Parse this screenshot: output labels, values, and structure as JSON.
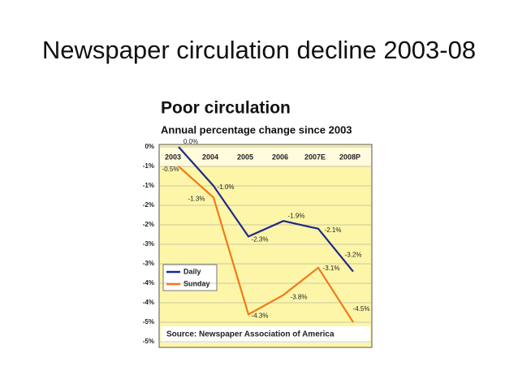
{
  "slide_title": "Newspaper circulation decline 2003-08",
  "chart_data": {
    "type": "line",
    "title": "Poor circulation",
    "subtitle": "Annual percentage change since 2003",
    "source": "Source: Newspaper Association of America",
    "categories": [
      "2003",
      "2004",
      "2005",
      "2006",
      "2007E",
      "2008P"
    ],
    "series": [
      {
        "name": "Daily",
        "color": "#1f2a8a",
        "values": [
          0.0,
          -1.0,
          -2.3,
          -1.9,
          -2.1,
          -3.2
        ],
        "value_labels": [
          "0.0%",
          "-1.0%",
          "-2.3%",
          "-1.9%",
          "-2.1%",
          "-3.2%"
        ]
      },
      {
        "name": "Sunday",
        "color": "#f07a1a",
        "values": [
          -0.5,
          -1.3,
          -4.3,
          -3.8,
          -3.1,
          -4.5
        ],
        "value_labels": [
          "-0.5%",
          "-1.3%",
          "-4.3%",
          "-3.8%",
          "-3.1%",
          "-4.5%"
        ]
      }
    ],
    "ylim": [
      0,
      -5
    ],
    "yticks": [
      {
        "value": 0,
        "label": "0%"
      },
      {
        "value": -0.5,
        "label": "-1%"
      },
      {
        "value": -1,
        "label": "-1%"
      },
      {
        "value": -1.5,
        "label": "-2%"
      },
      {
        "value": -2,
        "label": "-2%"
      },
      {
        "value": -2.5,
        "label": "-3%"
      },
      {
        "value": -3,
        "label": "-3%"
      },
      {
        "value": -3.5,
        "label": "-4%"
      },
      {
        "value": -4,
        "label": "-4%"
      },
      {
        "value": -4.5,
        "label": "-5%"
      },
      {
        "value": -5,
        "label": "-5%"
      }
    ],
    "grid": true,
    "legend": "lower left"
  }
}
